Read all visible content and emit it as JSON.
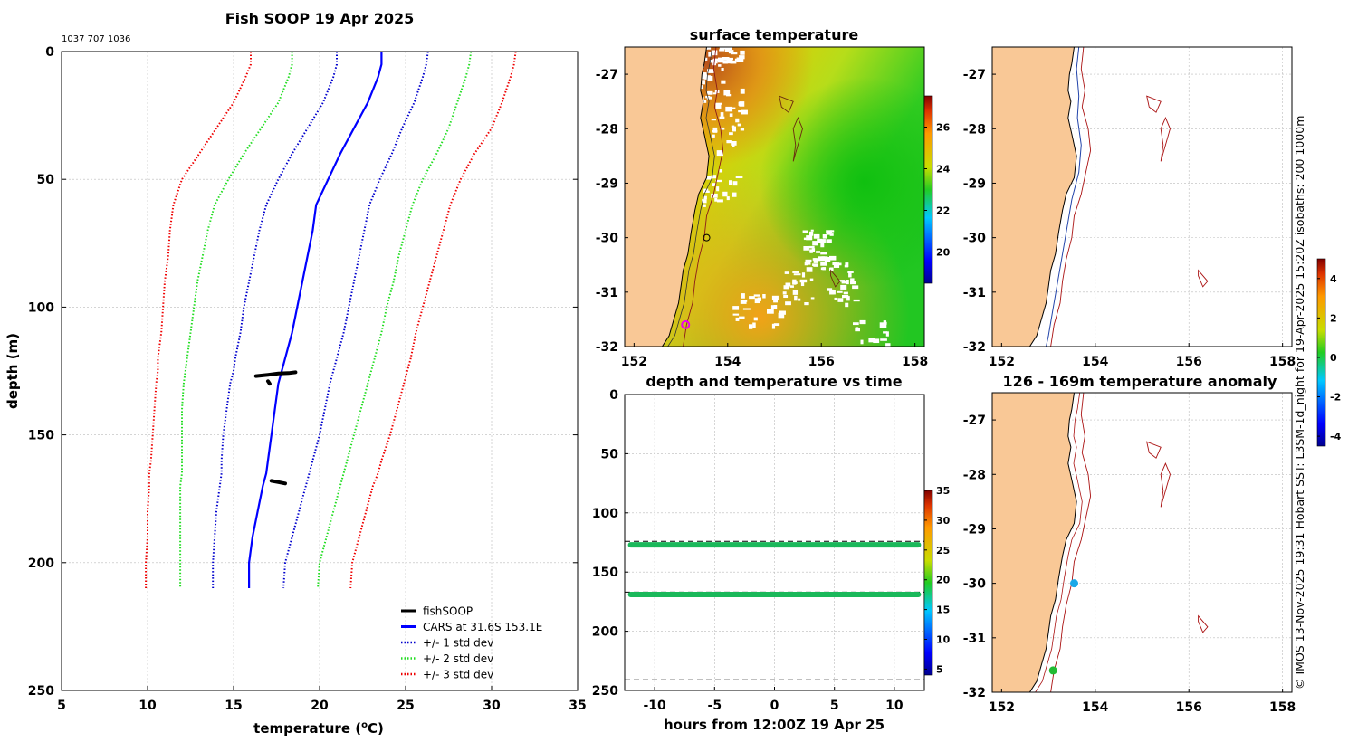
{
  "credit": "© IMOS 13-Nov-2025 19:31 Hobart SST: L3SM-1d_night for 19-Apr-2025 15:20Z isobaths: 200  1000m",
  "colors": {
    "land": "#f9c896",
    "cars": "#0000ff",
    "std1": "#0000cc",
    "std2": "#22dd22",
    "std3": "#ee0000",
    "fish": "#000000",
    "isobath": "#aa1111",
    "track": "#2244aa",
    "anomaly_hi": "#990000",
    "anomaly_lo": "#000088"
  },
  "chart_data": [
    {
      "id": "profile",
      "type": "line",
      "title": "Fish SOOP 19 Apr 2025",
      "subtitle": "1037 707 1036",
      "xlabel": "temperature (",
      "xlabel_sup": "o",
      "xlabel_end": "C)",
      "ylabel": "depth (m)",
      "xlim": [
        5,
        35
      ],
      "ylim": [
        250,
        0
      ],
      "xticks": [
        "5",
        "10",
        "15",
        "20",
        "25",
        "30",
        "35"
      ],
      "yticks": [
        "0",
        "50",
        "100",
        "150",
        "200",
        "250"
      ],
      "cars_depth": [
        0,
        5,
        10,
        20,
        30,
        40,
        50,
        60,
        70,
        80,
        90,
        100,
        110,
        120,
        125,
        130,
        140,
        150,
        160,
        165,
        170,
        180,
        190,
        200,
        210
      ],
      "series": [
        {
          "name": "CARS at 31.6S 153.1E",
          "style": "solid",
          "values": [
            23.6,
            23.6,
            23.4,
            22.8,
            22.0,
            21.2,
            20.5,
            19.8,
            19.6,
            19.3,
            19.0,
            18.7,
            18.4,
            18.0,
            17.8,
            17.6,
            17.4,
            17.2,
            17.0,
            16.9,
            16.7,
            16.4,
            16.1,
            15.9,
            15.9
          ]
        },
        {
          "name": "+/- 1 std dev",
          "style": "dotted",
          "upper": [
            26.3,
            26.2,
            26.0,
            25.5,
            24.8,
            24.2,
            23.5,
            22.9,
            22.6,
            22.3,
            22.0,
            21.7,
            21.4,
            21.0,
            20.8,
            20.6,
            20.3,
            20.0,
            19.6,
            19.4,
            19.2,
            18.8,
            18.4,
            18.0,
            17.9
          ],
          "lower": [
            21.0,
            21.0,
            20.8,
            20.2,
            19.3,
            18.4,
            17.6,
            16.9,
            16.5,
            16.2,
            15.9,
            15.6,
            15.4,
            15.1,
            15.0,
            14.8,
            14.6,
            14.4,
            14.3,
            14.3,
            14.2,
            14.0,
            13.9,
            13.8,
            13.8
          ]
        },
        {
          "name": "+/- 2 std dev",
          "style": "dotted",
          "upper": [
            28.8,
            28.7,
            28.5,
            28.0,
            27.5,
            26.8,
            26.0,
            25.4,
            25.0,
            24.6,
            24.3,
            23.9,
            23.6,
            23.2,
            23.0,
            22.8,
            22.4,
            22.0,
            21.6,
            21.4,
            21.2,
            20.8,
            20.4,
            20.0,
            19.9
          ],
          "lower": [
            18.4,
            18.4,
            18.2,
            17.6,
            16.6,
            15.6,
            14.7,
            13.9,
            13.5,
            13.2,
            12.9,
            12.7,
            12.5,
            12.3,
            12.2,
            12.1,
            12.0,
            12.0,
            12.0,
            12.0,
            11.9,
            11.9,
            11.9,
            11.9,
            11.9
          ]
        },
        {
          "name": "+/- 3 std dev",
          "style": "dotted",
          "upper": [
            31.4,
            31.3,
            31.1,
            30.6,
            30.0,
            29.0,
            28.2,
            27.6,
            27.2,
            26.8,
            26.4,
            26.0,
            25.6,
            25.3,
            25.1,
            24.9,
            24.5,
            24.1,
            23.6,
            23.4,
            23.1,
            22.7,
            22.3,
            21.9,
            21.8
          ],
          "lower": [
            16.0,
            16.0,
            15.7,
            15.0,
            14.0,
            13.0,
            12.0,
            11.5,
            11.3,
            11.2,
            11.0,
            10.9,
            10.8,
            10.6,
            10.6,
            10.5,
            10.4,
            10.3,
            10.2,
            10.1,
            10.1,
            10.0,
            10.0,
            9.9,
            9.9
          ]
        },
        {
          "name": "fishSOOP",
          "style": "points",
          "segments": [
            {
              "depth": [
                127,
                126.5,
                126,
                125.8,
                125.5
              ],
              "temp": [
                16.3,
                17.0,
                17.6,
                18.2,
                18.6
              ]
            },
            {
              "depth": [
                129,
                130
              ],
              "temp": [
                17.0,
                17.1
              ]
            },
            {
              "depth": [
                168,
                168.5,
                169
              ],
              "temp": [
                17.2,
                17.6,
                18.0
              ]
            }
          ]
        }
      ],
      "legend": [
        "fishSOOP",
        "CARS at 31.6S 153.1E",
        "+/- 1 std dev",
        "+/- 2 std dev",
        "+/- 3 std dev"
      ],
      "legend_position": "bottom-right"
    },
    {
      "id": "sst_map",
      "type": "heatmap",
      "title": "surface temperature",
      "xlim": [
        151.8,
        158.2
      ],
      "ylim": [
        -32,
        -26.5
      ],
      "xticks": [
        "152",
        "154",
        "156",
        "158"
      ],
      "yticks": [
        "-27",
        "-28",
        "-29",
        "-30",
        "-31",
        "-32"
      ],
      "colorbar": {
        "ticks": [
          "20",
          "22",
          "24",
          "26"
        ],
        "range": [
          18.5,
          27.5
        ]
      },
      "marker": {
        "lon": 153.1,
        "lat": -31.6
      }
    },
    {
      "id": "depth_time",
      "type": "scatter",
      "title": "depth and temperature vs time",
      "xlabel": "hours from 12:00Z 19 Apr 25",
      "xlim": [
        -12.5,
        12.5
      ],
      "ylim": [
        250,
        0
      ],
      "xticks": [
        "-10",
        "-5",
        "0",
        "5",
        "10"
      ],
      "yticks": [
        "0",
        "50",
        "100",
        "150",
        "200",
        "250"
      ],
      "dashed_depths": [
        124,
        167,
        241
      ],
      "bands": [
        {
          "depth": 127,
          "temp": 21
        },
        {
          "depth": 169,
          "temp": 21
        }
      ],
      "colorbar": {
        "ticks": [
          "5",
          "10",
          "15",
          "20",
          "25",
          "30",
          "35"
        ],
        "range": [
          4,
          35
        ]
      }
    },
    {
      "id": "isobath_map",
      "type": "line",
      "xlim": [
        151.8,
        158.2
      ],
      "ylim": [
        -32,
        -26.5
      ],
      "xticks": [
        "152",
        "154",
        "156",
        "158"
      ],
      "yticks": [
        "-27",
        "-28",
        "-29",
        "-30",
        "-31",
        "-32"
      ]
    },
    {
      "id": "anomaly_map",
      "type": "scatter",
      "title": "126 - 169m temperature anomaly",
      "xlim": [
        151.8,
        158.2
      ],
      "ylim": [
        -32,
        -26.5
      ],
      "xticks": [
        "152",
        "154",
        "156",
        "158"
      ],
      "yticks": [
        "-27",
        "-28",
        "-29",
        "-30",
        "-31",
        "-32"
      ],
      "points": [
        {
          "lon": 153.55,
          "lat": -30.0,
          "anomaly": -1.2
        },
        {
          "lon": 153.1,
          "lat": -31.6,
          "anomaly": 0.2
        }
      ],
      "colorbar": {
        "ticks": [
          "-4",
          "-2",
          "0",
          "2",
          "4"
        ],
        "range": [
          -4.5,
          5
        ]
      }
    }
  ]
}
